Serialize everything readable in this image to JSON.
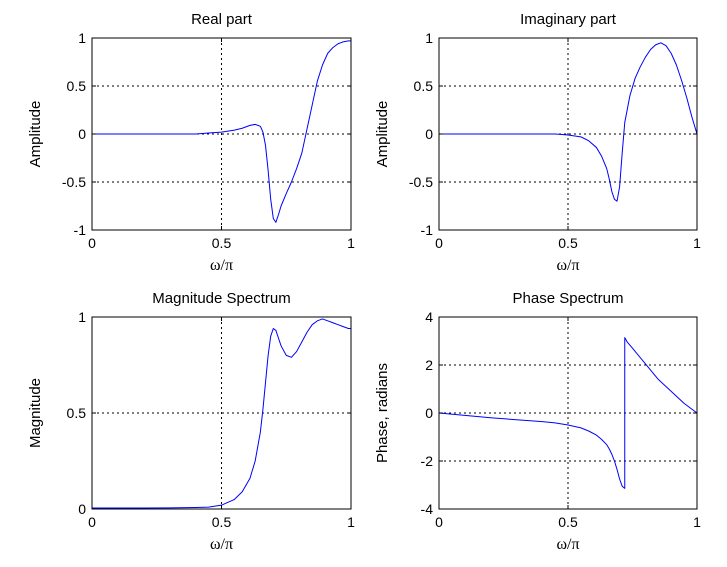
{
  "chart_data": [
    {
      "type": "line",
      "title": "Real part",
      "xlabel": "ω/π",
      "ylabel": "Amplitude",
      "xlim": [
        0,
        1
      ],
      "ylim": [
        -1,
        1
      ],
      "xticks": [
        "0",
        "0.5",
        "1"
      ],
      "yticks": [
        "-1",
        "-0.5",
        "0",
        "0.5",
        "1"
      ],
      "grid": true,
      "line_color": "#0000ff",
      "series": [
        {
          "x": [
            0,
            0.1,
            0.2,
            0.3,
            0.4,
            0.45,
            0.5,
            0.55,
            0.58,
            0.61,
            0.63,
            0.65,
            0.66,
            0.67,
            0.68,
            0.69,
            0.7,
            0.71,
            0.72,
            0.73,
            0.75,
            0.77,
            0.79,
            0.81,
            0.83,
            0.85,
            0.87,
            0.89,
            0.91,
            0.93,
            0.95,
            0.97,
            0.99,
            1.0
          ],
          "y": [
            0,
            0,
            0,
            0,
            0,
            0.01,
            0.02,
            0.04,
            0.06,
            0.09,
            0.1,
            0.08,
            0.02,
            -0.12,
            -0.38,
            -0.68,
            -0.88,
            -0.92,
            -0.84,
            -0.75,
            -0.62,
            -0.5,
            -0.36,
            -0.2,
            0.05,
            0.3,
            0.55,
            0.72,
            0.84,
            0.9,
            0.94,
            0.96,
            0.97,
            0.97
          ]
        }
      ]
    },
    {
      "type": "line",
      "title": "Imaginary part",
      "xlabel": "ω/π",
      "ylabel": "Amplitude",
      "xlim": [
        0,
        1
      ],
      "ylim": [
        -1,
        1
      ],
      "xticks": [
        "0",
        "0.5",
        "1"
      ],
      "yticks": [
        "-1",
        "-0.5",
        "0",
        "0.5",
        "1"
      ],
      "grid": true,
      "line_color": "#0000ff",
      "series": [
        {
          "x": [
            0,
            0.1,
            0.2,
            0.3,
            0.4,
            0.45,
            0.5,
            0.55,
            0.58,
            0.61,
            0.63,
            0.65,
            0.66,
            0.67,
            0.68,
            0.69,
            0.7,
            0.71,
            0.72,
            0.74,
            0.76,
            0.78,
            0.8,
            0.82,
            0.84,
            0.86,
            0.88,
            0.9,
            0.92,
            0.94,
            0.96,
            0.98,
            1.0
          ],
          "y": [
            0,
            0,
            0,
            0,
            0,
            0,
            -0.01,
            -0.03,
            -0.07,
            -0.14,
            -0.23,
            -0.36,
            -0.47,
            -0.6,
            -0.68,
            -0.7,
            -0.55,
            -0.2,
            0.12,
            0.4,
            0.58,
            0.7,
            0.8,
            0.88,
            0.93,
            0.95,
            0.92,
            0.84,
            0.72,
            0.56,
            0.38,
            0.18,
            0.0
          ]
        }
      ]
    },
    {
      "type": "line",
      "title": "Magnitude Spectrum",
      "xlabel": "ω/π",
      "ylabel": "Magnitude",
      "xlim": [
        0,
        1
      ],
      "ylim": [
        0,
        1
      ],
      "xticks": [
        "0",
        "0.5",
        "1"
      ],
      "yticks": [
        "0",
        "0.5",
        "1"
      ],
      "grid": true,
      "line_color": "#0000ff",
      "series": [
        {
          "x": [
            0,
            0.1,
            0.2,
            0.3,
            0.4,
            0.45,
            0.5,
            0.55,
            0.58,
            0.61,
            0.63,
            0.65,
            0.66,
            0.67,
            0.68,
            0.69,
            0.7,
            0.71,
            0.72,
            0.73,
            0.75,
            0.77,
            0.79,
            0.81,
            0.83,
            0.85,
            0.87,
            0.89,
            0.91,
            0.93,
            0.95,
            0.97,
            0.99,
            1.0
          ],
          "y": [
            0.005,
            0.005,
            0.005,
            0.006,
            0.008,
            0.01,
            0.02,
            0.05,
            0.09,
            0.16,
            0.25,
            0.4,
            0.52,
            0.66,
            0.8,
            0.9,
            0.94,
            0.93,
            0.89,
            0.85,
            0.8,
            0.79,
            0.82,
            0.87,
            0.92,
            0.96,
            0.98,
            0.99,
            0.98,
            0.97,
            0.96,
            0.95,
            0.94,
            0.94
          ]
        }
      ]
    },
    {
      "type": "line",
      "title": "Phase Spectrum",
      "xlabel": "ω/π",
      "ylabel": "Phase, radians",
      "xlim": [
        0,
        1
      ],
      "ylim": [
        -4,
        4
      ],
      "xticks": [
        "0",
        "0.5",
        "1"
      ],
      "yticks": [
        "-4",
        "-2",
        "0",
        "2",
        "4"
      ],
      "grid": true,
      "line_color": "#0000ff",
      "series": [
        {
          "x": [
            0,
            0.1,
            0.2,
            0.3,
            0.4,
            0.45,
            0.5,
            0.55,
            0.58,
            0.61,
            0.63,
            0.65,
            0.66,
            0.67,
            0.68,
            0.69,
            0.7,
            0.71,
            0.72,
            0.72,
            0.73,
            0.75,
            0.8,
            0.85,
            0.9,
            0.95,
            1.0
          ],
          "y": [
            0,
            -0.1,
            -0.2,
            -0.28,
            -0.36,
            -0.41,
            -0.5,
            -0.62,
            -0.75,
            -0.92,
            -1.1,
            -1.32,
            -1.5,
            -1.72,
            -2.0,
            -2.35,
            -2.75,
            -3.05,
            -3.14,
            3.14,
            2.95,
            2.7,
            2.05,
            1.4,
            0.9,
            0.4,
            0.0
          ]
        }
      ]
    }
  ]
}
